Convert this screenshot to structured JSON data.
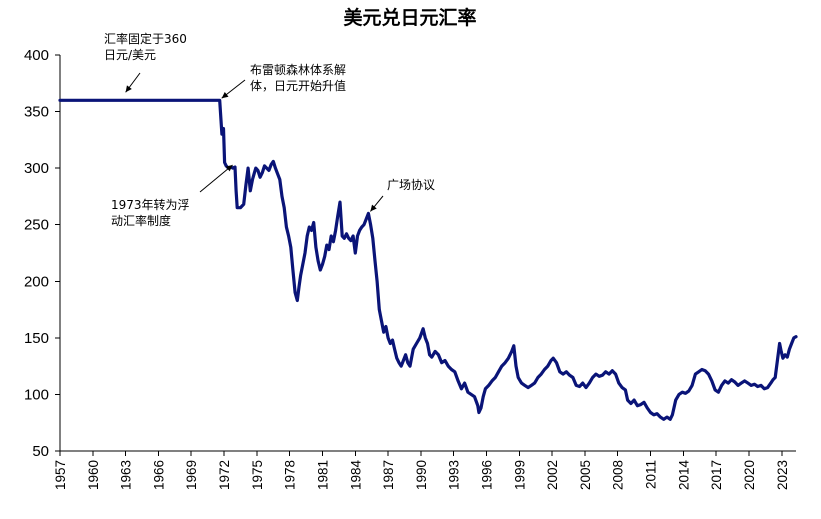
{
  "chart_data": {
    "type": "line",
    "title": "美元兑日元汇率",
    "xlabel": "",
    "ylabel": "",
    "ylim": [
      50,
      400
    ],
    "yticks": [
      50,
      100,
      150,
      200,
      250,
      300,
      350,
      400
    ],
    "xlim": [
      1957,
      2024.3
    ],
    "xticks": [
      1957,
      1960,
      1963,
      1966,
      1969,
      1972,
      1975,
      1978,
      1981,
      1984,
      1987,
      1990,
      1993,
      1996,
      1999,
      2002,
      2005,
      2008,
      2011,
      2014,
      2017,
      2020,
      2023
    ],
    "legend": "none",
    "grid": false,
    "series": [
      {
        "name": "美元兑日元",
        "color": "#0a1478",
        "x": [
          1957,
          1971.6,
          1971.8,
          1971.95,
          1972.05,
          1972.2,
          1972.4,
          1972.6,
          1972.8,
          1973.0,
          1973.1,
          1973.2,
          1973.35,
          1973.5,
          1973.8,
          1974.0,
          1974.2,
          1974.4,
          1974.6,
          1974.75,
          1974.9,
          1975.1,
          1975.3,
          1975.5,
          1975.7,
          1975.9,
          1976.1,
          1976.3,
          1976.5,
          1976.7,
          1976.9,
          1977.1,
          1977.3,
          1977.5,
          1977.7,
          1977.9,
          1978.1,
          1978.3,
          1978.5,
          1978.7,
          1978.85,
          1979.0,
          1979.2,
          1979.4,
          1979.6,
          1979.8,
          1980.0,
          1980.2,
          1980.4,
          1980.6,
          1980.8,
          1981.0,
          1981.2,
          1981.4,
          1981.6,
          1981.8,
          1982.0,
          1982.2,
          1982.4,
          1982.6,
          1982.8,
          1983.0,
          1983.2,
          1983.4,
          1983.6,
          1983.8,
          1984.0,
          1984.2,
          1984.4,
          1984.6,
          1984.8,
          1985.0,
          1985.2,
          1985.4,
          1985.6,
          1985.8,
          1986.0,
          1986.2,
          1986.4,
          1986.6,
          1986.8,
          1987.0,
          1987.2,
          1987.4,
          1987.6,
          1987.8,
          1988.0,
          1988.2,
          1988.4,
          1988.6,
          1988.8,
          1989.0,
          1989.3,
          1989.6,
          1989.9,
          1990.2,
          1990.4,
          1990.6,
          1990.8,
          1991.0,
          1991.3,
          1991.6,
          1991.9,
          1992.2,
          1992.5,
          1992.8,
          1993.1,
          1993.4,
          1993.7,
          1994.0,
          1994.3,
          1994.6,
          1994.9,
          1995.2,
          1995.3,
          1995.5,
          1995.7,
          1995.9,
          1996.2,
          1996.5,
          1996.8,
          1997.1,
          1997.4,
          1997.7,
          1998.0,
          1998.3,
          1998.5,
          1998.7,
          1998.9,
          1999.2,
          1999.5,
          1999.8,
          2000.1,
          2000.4,
          2000.7,
          2001.0,
          2001.3,
          2001.6,
          2001.9,
          2002.1,
          2002.4,
          2002.7,
          2003.0,
          2003.3,
          2003.6,
          2003.9,
          2004.2,
          2004.5,
          2004.8,
          2005.1,
          2005.4,
          2005.7,
          2006.0,
          2006.3,
          2006.6,
          2006.9,
          2007.2,
          2007.5,
          2007.8,
          2008.1,
          2008.4,
          2008.7,
          2008.9,
          2009.2,
          2009.5,
          2009.8,
          2010.1,
          2010.4,
          2010.7,
          2011.0,
          2011.3,
          2011.6,
          2011.9,
          2012.2,
          2012.5,
          2012.8,
          2013.0,
          2013.3,
          2013.6,
          2013.9,
          2014.2,
          2014.5,
          2014.8,
          2015.1,
          2015.4,
          2015.7,
          2016.0,
          2016.3,
          2016.6,
          2016.9,
          2017.2,
          2017.5,
          2017.8,
          2018.1,
          2018.4,
          2018.7,
          2019.0,
          2019.3,
          2019.6,
          2019.9,
          2020.2,
          2020.5,
          2020.8,
          2021.1,
          2021.4,
          2021.7,
          2022.0,
          2022.2,
          2022.4,
          2022.6,
          2022.8,
          2022.95,
          2023.1,
          2023.3,
          2023.5,
          2023.7,
          2023.9,
          2024.1,
          2024.3
        ],
        "y": [
          360,
          360,
          330,
          335,
          305,
          302,
          300,
          301,
          300,
          301,
          280,
          265,
          265,
          265,
          268,
          285,
          300,
          280,
          290,
          295,
          300,
          298,
          292,
          296,
          302,
          300,
          298,
          303,
          306,
          300,
          295,
          290,
          275,
          265,
          248,
          240,
          230,
          210,
          190,
          183,
          195,
          205,
          215,
          225,
          240,
          248,
          245,
          252,
          230,
          218,
          210,
          215,
          222,
          232,
          228,
          240,
          235,
          245,
          258,
          270,
          240,
          238,
          242,
          238,
          236,
          240,
          225,
          240,
          245,
          248,
          250,
          255,
          260,
          250,
          238,
          218,
          200,
          175,
          165,
          155,
          160,
          150,
          145,
          148,
          140,
          132,
          128,
          125,
          130,
          135,
          128,
          125,
          140,
          145,
          150,
          158,
          150,
          145,
          135,
          133,
          138,
          135,
          128,
          130,
          125,
          122,
          120,
          112,
          105,
          110,
          102,
          100,
          98,
          90,
          84,
          88,
          98,
          105,
          108,
          112,
          115,
          120,
          125,
          128,
          132,
          138,
          143,
          125,
          115,
          110,
          108,
          106,
          108,
          110,
          115,
          118,
          122,
          125,
          130,
          132,
          128,
          120,
          118,
          120,
          117,
          115,
          108,
          107,
          110,
          106,
          110,
          115,
          118,
          116,
          117,
          120,
          118,
          121,
          118,
          110,
          106,
          104,
          95,
          92,
          95,
          90,
          91,
          93,
          88,
          84,
          82,
          83,
          80,
          78,
          80,
          78,
          82,
          95,
          100,
          102,
          101,
          103,
          108,
          118,
          120,
          122,
          121,
          118,
          112,
          104,
          102,
          108,
          112,
          110,
          113,
          111,
          108,
          110,
          112,
          110,
          108,
          109,
          107,
          108,
          105,
          106,
          110,
          113,
          115,
          130,
          145,
          138,
          132,
          135,
          133,
          140,
          145,
          150,
          151
        ]
      }
    ],
    "annotations": [
      {
        "lines": [
          "汇率固定于360",
          "日元/美元"
        ],
        "arrow_to": [
          1963.0,
          360
        ]
      },
      {
        "lines": [
          "布雷顿森林体系解",
          "体，日元开始升值"
        ],
        "arrow_to": [
          1971.6,
          360
        ]
      },
      {
        "lines": [
          "1973年转为浮",
          "动汇率制度"
        ],
        "arrow_to": [
          1972.6,
          301
        ]
      },
      {
        "lines": [
          "广场协议"
        ],
        "arrow_to": [
          1985.2,
          260
        ]
      }
    ]
  }
}
